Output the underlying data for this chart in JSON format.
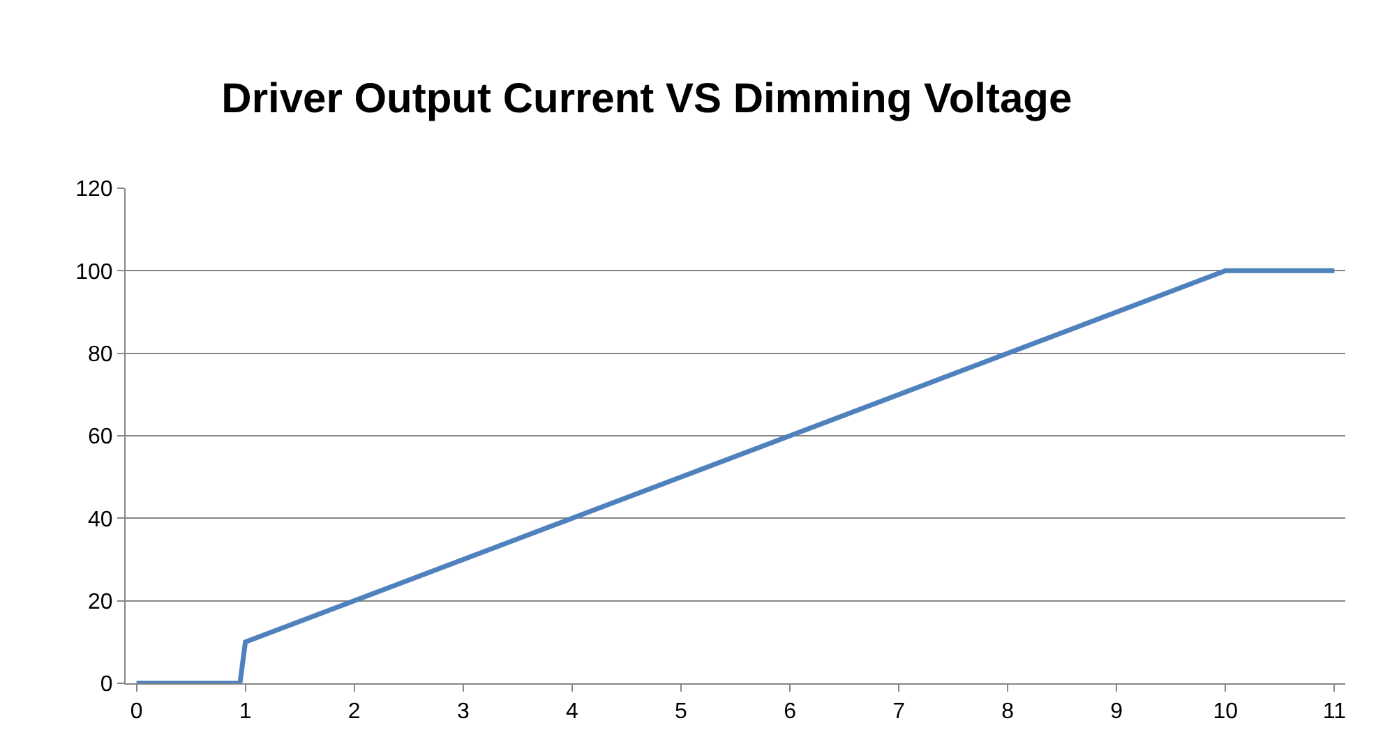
{
  "chart_data": {
    "type": "line",
    "title": "Driver Output Current VS Dimming Voltage",
    "x": [
      0,
      0.95,
      1,
      10,
      11
    ],
    "series": [
      {
        "color": "#4f81bd",
        "values": [
          0,
          0,
          10,
          100,
          100
        ]
      }
    ],
    "xlim": [
      -0.1,
      11.1
    ],
    "xticks": [
      0,
      1,
      2,
      3,
      4,
      5,
      6,
      7,
      8,
      9,
      10,
      11
    ],
    "ylim": [
      0,
      120
    ],
    "yticks": [
      0,
      20,
      40,
      60,
      80,
      100,
      120
    ],
    "grid": "y",
    "marker": "none",
    "line_style": "solid"
  }
}
